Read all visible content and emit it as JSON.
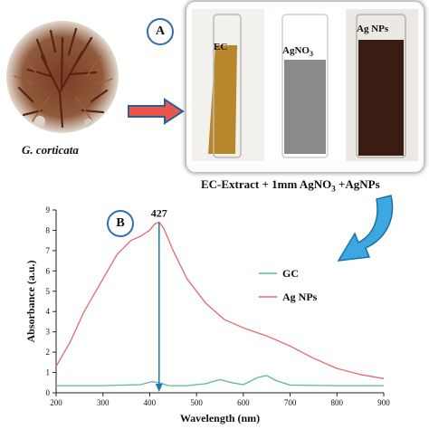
{
  "figure": {
    "species": "G. corticata",
    "panel_a_label": "A",
    "panel_b_label": "B",
    "tubes": [
      {
        "label": "EC",
        "color": "#b8862b"
      },
      {
        "label": "AgNO3",
        "color": "#8a8a8a"
      },
      {
        "label": "Ag NPs",
        "color": "#3a1c12"
      }
    ],
    "caption": "EC-Extract + 1mm AgNO3 +AgNPs"
  },
  "chart_data": {
    "type": "line",
    "xlabel": "Wavelength (nm)",
    "ylabel": "Absorbance (a.u.)",
    "xlim": [
      200,
      900
    ],
    "ylim": [
      0,
      9
    ],
    "xticks": [
      "200",
      "300",
      "400",
      "500",
      "600",
      "700",
      "800",
      "900"
    ],
    "yticks": [
      "0",
      "1",
      "2",
      "3",
      "4",
      "5",
      "6",
      "7",
      "8",
      "9"
    ],
    "peak_annotation": {
      "text": "427",
      "x": 420,
      "y": 8.4
    },
    "legend_position": "right",
    "series": [
      {
        "name": "GC",
        "color": "#5fb894",
        "x": [
          200,
          300,
          380,
          405,
          420,
          440,
          480,
          520,
          550,
          575,
          600,
          630,
          650,
          670,
          700,
          800,
          900
        ],
        "y": [
          0.35,
          0.35,
          0.4,
          0.55,
          0.5,
          0.35,
          0.35,
          0.45,
          0.65,
          0.5,
          0.4,
          0.75,
          0.85,
          0.6,
          0.38,
          0.35,
          0.35
        ]
      },
      {
        "name": "Ag NPs",
        "color": "#e26b6b",
        "x": [
          200,
          230,
          260,
          300,
          330,
          360,
          380,
          400,
          410,
          420,
          430,
          450,
          480,
          520,
          560,
          600,
          650,
          700,
          750,
          800,
          850,
          900
        ],
        "y": [
          1.3,
          2.5,
          4.0,
          5.6,
          6.8,
          7.5,
          7.7,
          8.0,
          8.3,
          8.4,
          8.1,
          7.0,
          5.6,
          4.4,
          3.6,
          3.2,
          2.8,
          2.3,
          1.7,
          1.2,
          0.9,
          0.7
        ]
      }
    ]
  }
}
